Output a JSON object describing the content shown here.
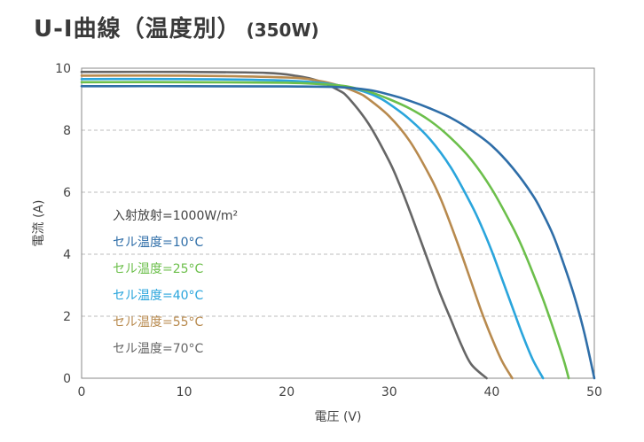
{
  "title": "U-I曲線（温度別）",
  "subtitle": "(350W)",
  "chart_data": {
    "type": "line",
    "xlabel": "電圧 (V)",
    "ylabel": "電流 (A)",
    "xlim": [
      0,
      50
    ],
    "ylim": [
      0,
      10
    ],
    "x_ticks": [
      "0",
      "10",
      "20",
      "30",
      "40",
      "50"
    ],
    "y_ticks": [
      "0",
      "2",
      "4",
      "6",
      "8",
      "10"
    ],
    "grid": "horizontal-dashed",
    "irradiance_label": "入射放射=1000W/m²",
    "legend_placement": "inside-left",
    "series": [
      {
        "name": "セル温度=10°C",
        "color": "#2f6ea8",
        "points": [
          [
            0,
            9.42
          ],
          [
            10,
            9.42
          ],
          [
            20,
            9.41
          ],
          [
            25,
            9.39
          ],
          [
            28,
            9.3
          ],
          [
            30,
            9.15
          ],
          [
            32,
            8.95
          ],
          [
            34,
            8.7
          ],
          [
            36,
            8.4
          ],
          [
            38,
            8.0
          ],
          [
            40,
            7.5
          ],
          [
            42,
            6.8
          ],
          [
            44,
            5.9
          ],
          [
            45,
            5.3
          ],
          [
            46,
            4.6
          ],
          [
            47,
            3.7
          ],
          [
            48,
            2.7
          ],
          [
            49,
            1.5
          ],
          [
            50,
            0
          ]
        ]
      },
      {
        "name": "セル温度=25°C",
        "color": "#6cbf4b",
        "points": [
          [
            0,
            9.55
          ],
          [
            10,
            9.55
          ],
          [
            20,
            9.53
          ],
          [
            25,
            9.45
          ],
          [
            27,
            9.33
          ],
          [
            28,
            9.25
          ],
          [
            30,
            9.0
          ],
          [
            32,
            8.7
          ],
          [
            34,
            8.3
          ],
          [
            36,
            7.75
          ],
          [
            38,
            7.05
          ],
          [
            40,
            6.1
          ],
          [
            42,
            4.9
          ],
          [
            43,
            4.2
          ],
          [
            44,
            3.4
          ],
          [
            45,
            2.55
          ],
          [
            46,
            1.6
          ],
          [
            47,
            0.6
          ],
          [
            47.5,
            0
          ]
        ]
      },
      {
        "name": "セル温度=40°C",
        "color": "#2aa5dc",
        "points": [
          [
            0,
            9.65
          ],
          [
            10,
            9.65
          ],
          [
            20,
            9.6
          ],
          [
            24,
            9.5
          ],
          [
            26,
            9.38
          ],
          [
            27.5,
            9.25
          ],
          [
            29,
            9.05
          ],
          [
            30,
            8.85
          ],
          [
            32,
            8.35
          ],
          [
            34,
            7.7
          ],
          [
            36,
            6.8
          ],
          [
            38,
            5.6
          ],
          [
            39,
            4.9
          ],
          [
            40,
            4.1
          ],
          [
            41,
            3.2
          ],
          [
            42,
            2.3
          ],
          [
            43,
            1.4
          ],
          [
            44,
            0.6
          ],
          [
            45,
            0
          ]
        ]
      },
      {
        "name": "セル温度=55°C",
        "color": "#b88a4e",
        "points": [
          [
            0,
            9.76
          ],
          [
            10,
            9.76
          ],
          [
            20,
            9.7
          ],
          [
            23,
            9.6
          ],
          [
            25,
            9.45
          ],
          [
            27,
            9.2
          ],
          [
            28,
            9.0
          ],
          [
            30,
            8.45
          ],
          [
            32,
            7.65
          ],
          [
            34,
            6.5
          ],
          [
            35,
            5.8
          ],
          [
            36,
            4.95
          ],
          [
            37,
            4.05
          ],
          [
            38,
            3.1
          ],
          [
            39,
            2.15
          ],
          [
            40,
            1.3
          ],
          [
            41,
            0.55
          ],
          [
            42,
            0
          ]
        ]
      },
      {
        "name": "セル温度=70°C",
        "color": "#666666",
        "points": [
          [
            0,
            9.88
          ],
          [
            10,
            9.88
          ],
          [
            18,
            9.85
          ],
          [
            21,
            9.75
          ],
          [
            23,
            9.6
          ],
          [
            25,
            9.3
          ],
          [
            26,
            9.05
          ],
          [
            28,
            8.2
          ],
          [
            30,
            7.0
          ],
          [
            31,
            6.25
          ],
          [
            32,
            5.4
          ],
          [
            33,
            4.5
          ],
          [
            34,
            3.6
          ],
          [
            35,
            2.7
          ],
          [
            36,
            1.9
          ],
          [
            37,
            1.1
          ],
          [
            38,
            0.45
          ],
          [
            39.5,
            0
          ]
        ]
      }
    ]
  }
}
